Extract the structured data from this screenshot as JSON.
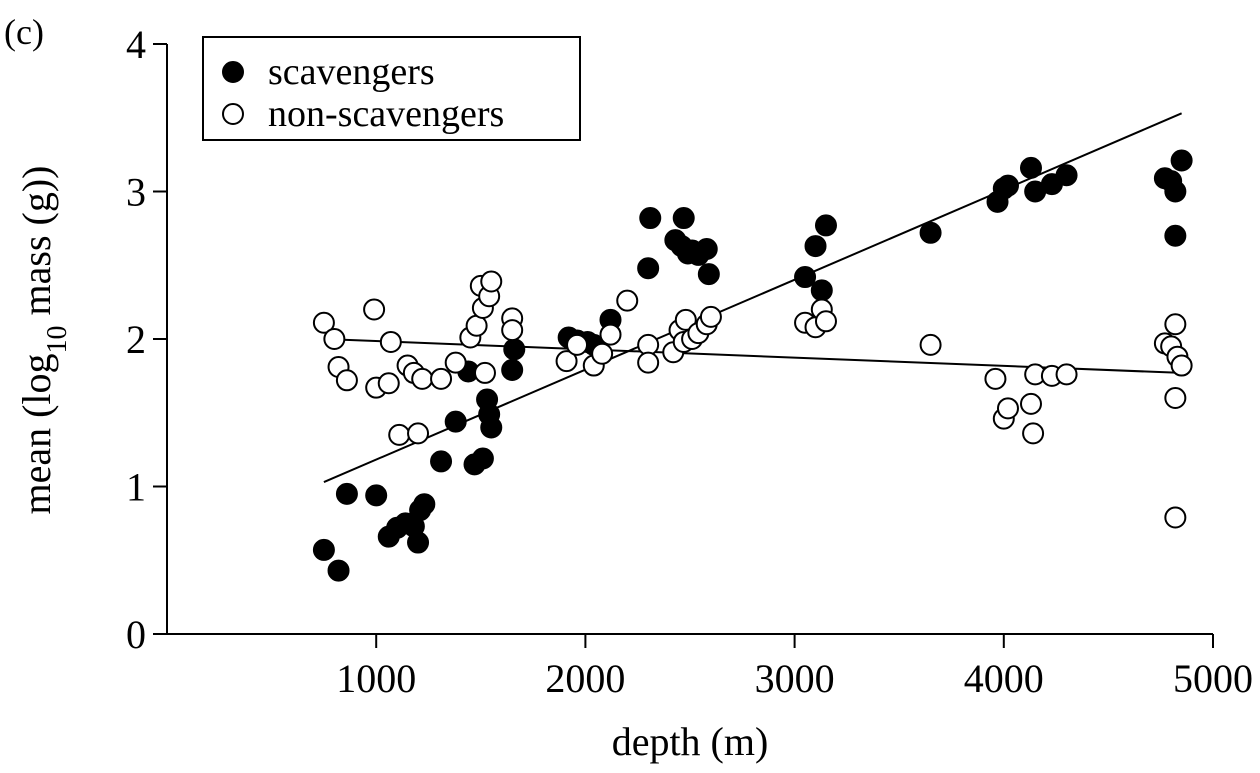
{
  "panel_label": "(c)",
  "colors": {
    "ink": "#000000",
    "background": "#ffffff"
  },
  "chart_data": {
    "type": "scatter",
    "title": "",
    "xlabel": "depth (m)",
    "ylabel_parts": {
      "pre": "mean (log",
      "sub": "10",
      "post": " mass (g))"
    },
    "xlim": [
      0,
      5000
    ],
    "ylim": [
      0,
      4
    ],
    "xticks": [
      1000,
      2000,
      3000,
      4000,
      5000
    ],
    "xtick_labels": [
      "1000",
      "2000",
      "3000",
      "4000",
      "5000"
    ],
    "yticks": [
      0,
      1,
      2,
      3,
      4
    ],
    "ytick_labels": [
      "0",
      "1",
      "2",
      "3",
      "4"
    ],
    "grid": false,
    "legend_position": "top-left",
    "series": [
      {
        "name": "scavengers",
        "marker": "filled-circle",
        "points": [
          [
            750,
            0.57
          ],
          [
            820,
            0.43
          ],
          [
            860,
            0.95
          ],
          [
            1000,
            0.94
          ],
          [
            1060,
            0.66
          ],
          [
            1100,
            0.72
          ],
          [
            1140,
            0.75
          ],
          [
            1180,
            0.73
          ],
          [
            1200,
            0.62
          ],
          [
            1210,
            0.84
          ],
          [
            1230,
            0.88
          ],
          [
            1310,
            1.17
          ],
          [
            1380,
            1.44
          ],
          [
            1440,
            1.78
          ],
          [
            1470,
            1.15
          ],
          [
            1510,
            1.19
          ],
          [
            1530,
            1.59
          ],
          [
            1540,
            1.49
          ],
          [
            1550,
            1.4
          ],
          [
            1650,
            1.79
          ],
          [
            1660,
            1.93
          ],
          [
            1920,
            2.01
          ],
          [
            1960,
            1.99
          ],
          [
            2010,
            1.98
          ],
          [
            2040,
            1.96
          ],
          [
            2120,
            2.13
          ],
          [
            2300,
            2.48
          ],
          [
            2310,
            2.82
          ],
          [
            2430,
            2.67
          ],
          [
            2460,
            2.63
          ],
          [
            2470,
            2.82
          ],
          [
            2490,
            2.58
          ],
          [
            2510,
            2.6
          ],
          [
            2540,
            2.57
          ],
          [
            2580,
            2.61
          ],
          [
            2590,
            2.44
          ],
          [
            3050,
            2.42
          ],
          [
            3100,
            2.63
          ],
          [
            3130,
            2.33
          ],
          [
            3150,
            2.77
          ],
          [
            3650,
            2.72
          ],
          [
            3970,
            2.93
          ],
          [
            4000,
            3.02
          ],
          [
            4020,
            3.04
          ],
          [
            4130,
            3.16
          ],
          [
            4150,
            3.0
          ],
          [
            4230,
            3.05
          ],
          [
            4300,
            3.11
          ],
          [
            4770,
            3.09
          ],
          [
            4800,
            3.07
          ],
          [
            4820,
            3.0
          ],
          [
            4820,
            2.7
          ],
          [
            4850,
            3.21
          ]
        ]
      },
      {
        "name": "non-scavengers",
        "marker": "open-circle",
        "points": [
          [
            750,
            2.11
          ],
          [
            800,
            2.0
          ],
          [
            820,
            1.81
          ],
          [
            860,
            1.72
          ],
          [
            990,
            2.2
          ],
          [
            1000,
            1.67
          ],
          [
            1060,
            1.7
          ],
          [
            1070,
            1.98
          ],
          [
            1110,
            1.35
          ],
          [
            1150,
            1.82
          ],
          [
            1180,
            1.77
          ],
          [
            1200,
            1.36
          ],
          [
            1220,
            1.73
          ],
          [
            1310,
            1.73
          ],
          [
            1380,
            1.84
          ],
          [
            1450,
            2.01
          ],
          [
            1480,
            2.09
          ],
          [
            1500,
            2.36
          ],
          [
            1510,
            2.21
          ],
          [
            1520,
            1.77
          ],
          [
            1540,
            2.29
          ],
          [
            1550,
            2.39
          ],
          [
            1650,
            2.14
          ],
          [
            1650,
            2.06
          ],
          [
            1910,
            1.85
          ],
          [
            1960,
            1.96
          ],
          [
            2040,
            1.82
          ],
          [
            2080,
            1.9
          ],
          [
            2120,
            2.03
          ],
          [
            2200,
            2.26
          ],
          [
            2300,
            1.96
          ],
          [
            2300,
            1.84
          ],
          [
            2420,
            1.91
          ],
          [
            2450,
            2.06
          ],
          [
            2470,
            1.98
          ],
          [
            2480,
            2.13
          ],
          [
            2510,
            2.0
          ],
          [
            2540,
            2.04
          ],
          [
            2580,
            2.1
          ],
          [
            2600,
            2.15
          ],
          [
            3050,
            2.11
          ],
          [
            3100,
            2.08
          ],
          [
            3130,
            2.2
          ],
          [
            3150,
            2.12
          ],
          [
            3650,
            1.96
          ],
          [
            3960,
            1.73
          ],
          [
            4000,
            1.46
          ],
          [
            4020,
            1.53
          ],
          [
            4130,
            1.56
          ],
          [
            4140,
            1.36
          ],
          [
            4150,
            1.76
          ],
          [
            4230,
            1.75
          ],
          [
            4300,
            1.76
          ],
          [
            4770,
            1.97
          ],
          [
            4800,
            1.95
          ],
          [
            4820,
            2.1
          ],
          [
            4820,
            1.6
          ],
          [
            4820,
            0.79
          ],
          [
            4830,
            1.88
          ],
          [
            4850,
            1.82
          ]
        ]
      }
    ],
    "fit_lines": [
      {
        "series": "scavengers",
        "x": [
          750,
          4850
        ],
        "y": [
          1.03,
          3.53
        ]
      },
      {
        "series": "non-scavengers",
        "x": [
          750,
          4850
        ],
        "y": [
          2.0,
          1.77
        ]
      }
    ]
  }
}
